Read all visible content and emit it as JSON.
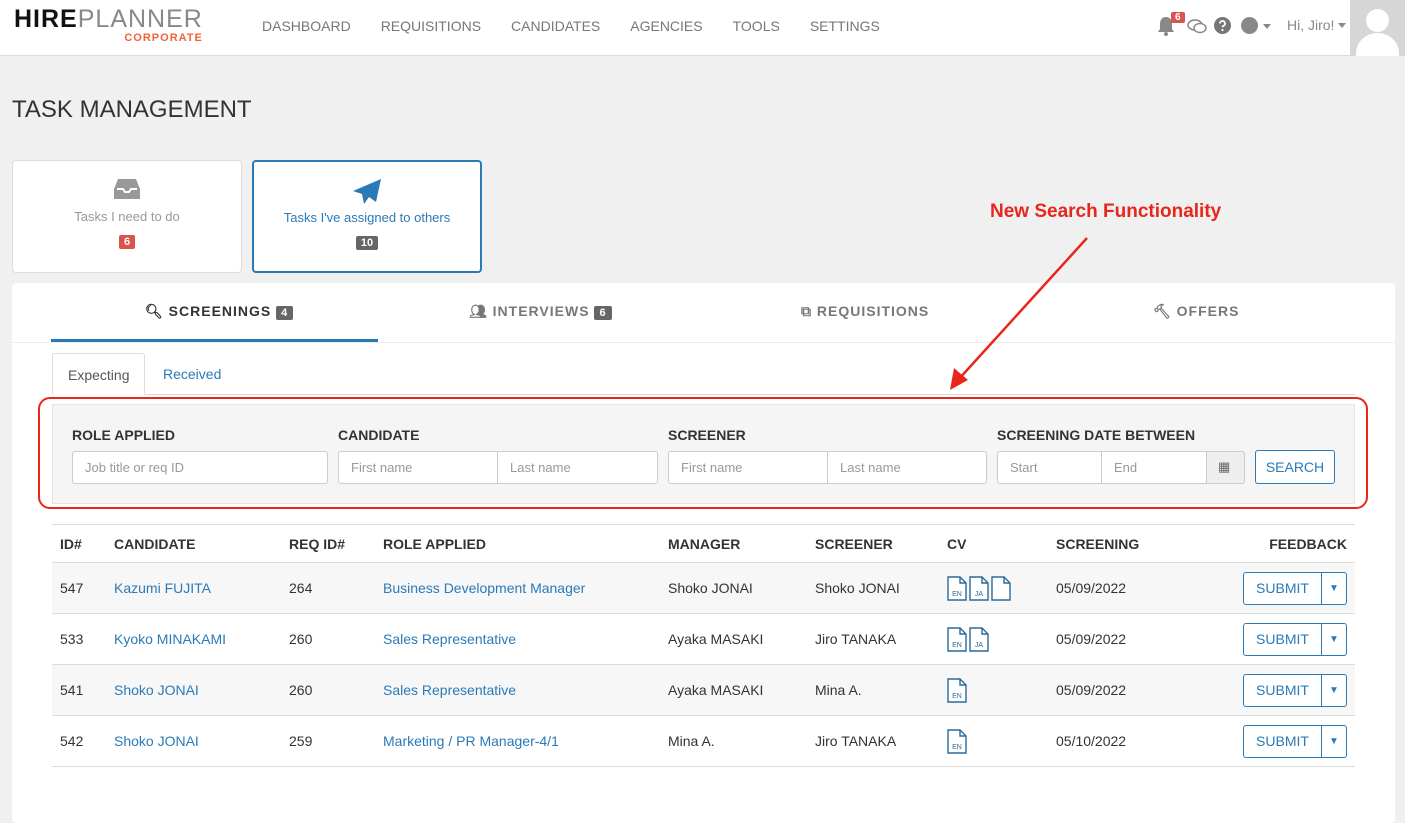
{
  "header": {
    "logo_hire": "HIRE",
    "logo_planner": "PLANNER",
    "logo_sub": "CORPORATE",
    "nav": [
      "DASHBOARD",
      "REQUISITIONS",
      "CANDIDATES",
      "AGENCIES",
      "TOOLS",
      "SETTINGS"
    ],
    "notifications": "6",
    "greeting": "Hi, Jiro!"
  },
  "page_title": "TASK MANAGEMENT",
  "cards": [
    {
      "label": "Tasks I need to do",
      "count": "6",
      "icon": "inbox-icon"
    },
    {
      "label": "Tasks I've assigned to others",
      "count": "10",
      "icon": "paper-plane-icon"
    }
  ],
  "tabs": [
    {
      "label": "SCREENINGS",
      "count": "4"
    },
    {
      "label": "INTERVIEWS",
      "count": "6"
    },
    {
      "label": "REQUISITIONS"
    },
    {
      "label": "OFFERS"
    }
  ],
  "subtabs": [
    "Expecting",
    "Received"
  ],
  "filters": {
    "role_label": "ROLE APPLIED",
    "role_ph": "Job title or req ID",
    "candidate_label": "CANDIDATE",
    "screener_label": "SCREENER",
    "first_ph": "First name",
    "last_ph": "Last name",
    "date_label": "SCREENING DATE BETWEEN",
    "start_ph": "Start",
    "end_ph": "End",
    "search": "SEARCH"
  },
  "annotation": "New Search Functionality",
  "table": {
    "headers": [
      "ID#",
      "CANDIDATE",
      "REQ ID#",
      "ROLE APPLIED",
      "MANAGER",
      "SCREENER",
      "CV",
      "SCREENING",
      "FEEDBACK"
    ],
    "submit": "SUBMIT",
    "rows": [
      {
        "id": "547",
        "candidate": "Kazumi FUJITA",
        "req": "264",
        "role": "Business Development Manager",
        "manager": "Shoko JONAI",
        "screener": "Shoko JONAI",
        "cv": [
          "EN",
          "JA",
          ""
        ],
        "date": "05/09/2022"
      },
      {
        "id": "533",
        "candidate": "Kyoko MINAKAMI",
        "req": "260",
        "role": "Sales Representative",
        "manager": "Ayaka MASAKI",
        "screener": "Jiro TANAKA",
        "cv": [
          "EN",
          "JA"
        ],
        "date": "05/09/2022"
      },
      {
        "id": "541",
        "candidate": "Shoko JONAI",
        "req": "260",
        "role": "Sales Representative",
        "manager": "Ayaka MASAKI",
        "screener": "Mina A.",
        "cv": [
          "EN"
        ],
        "date": "05/09/2022"
      },
      {
        "id": "542",
        "candidate": "Shoko JONAI",
        "req": "259",
        "role": "Marketing / PR Manager-4/1",
        "manager": "Mina A.",
        "screener": "Jiro TANAKA",
        "cv": [
          "EN"
        ],
        "date": "05/10/2022"
      }
    ]
  },
  "colors": {
    "accent": "#2a7ab8",
    "annotation": "#e8261c",
    "logo_sub": "#f0623a"
  }
}
